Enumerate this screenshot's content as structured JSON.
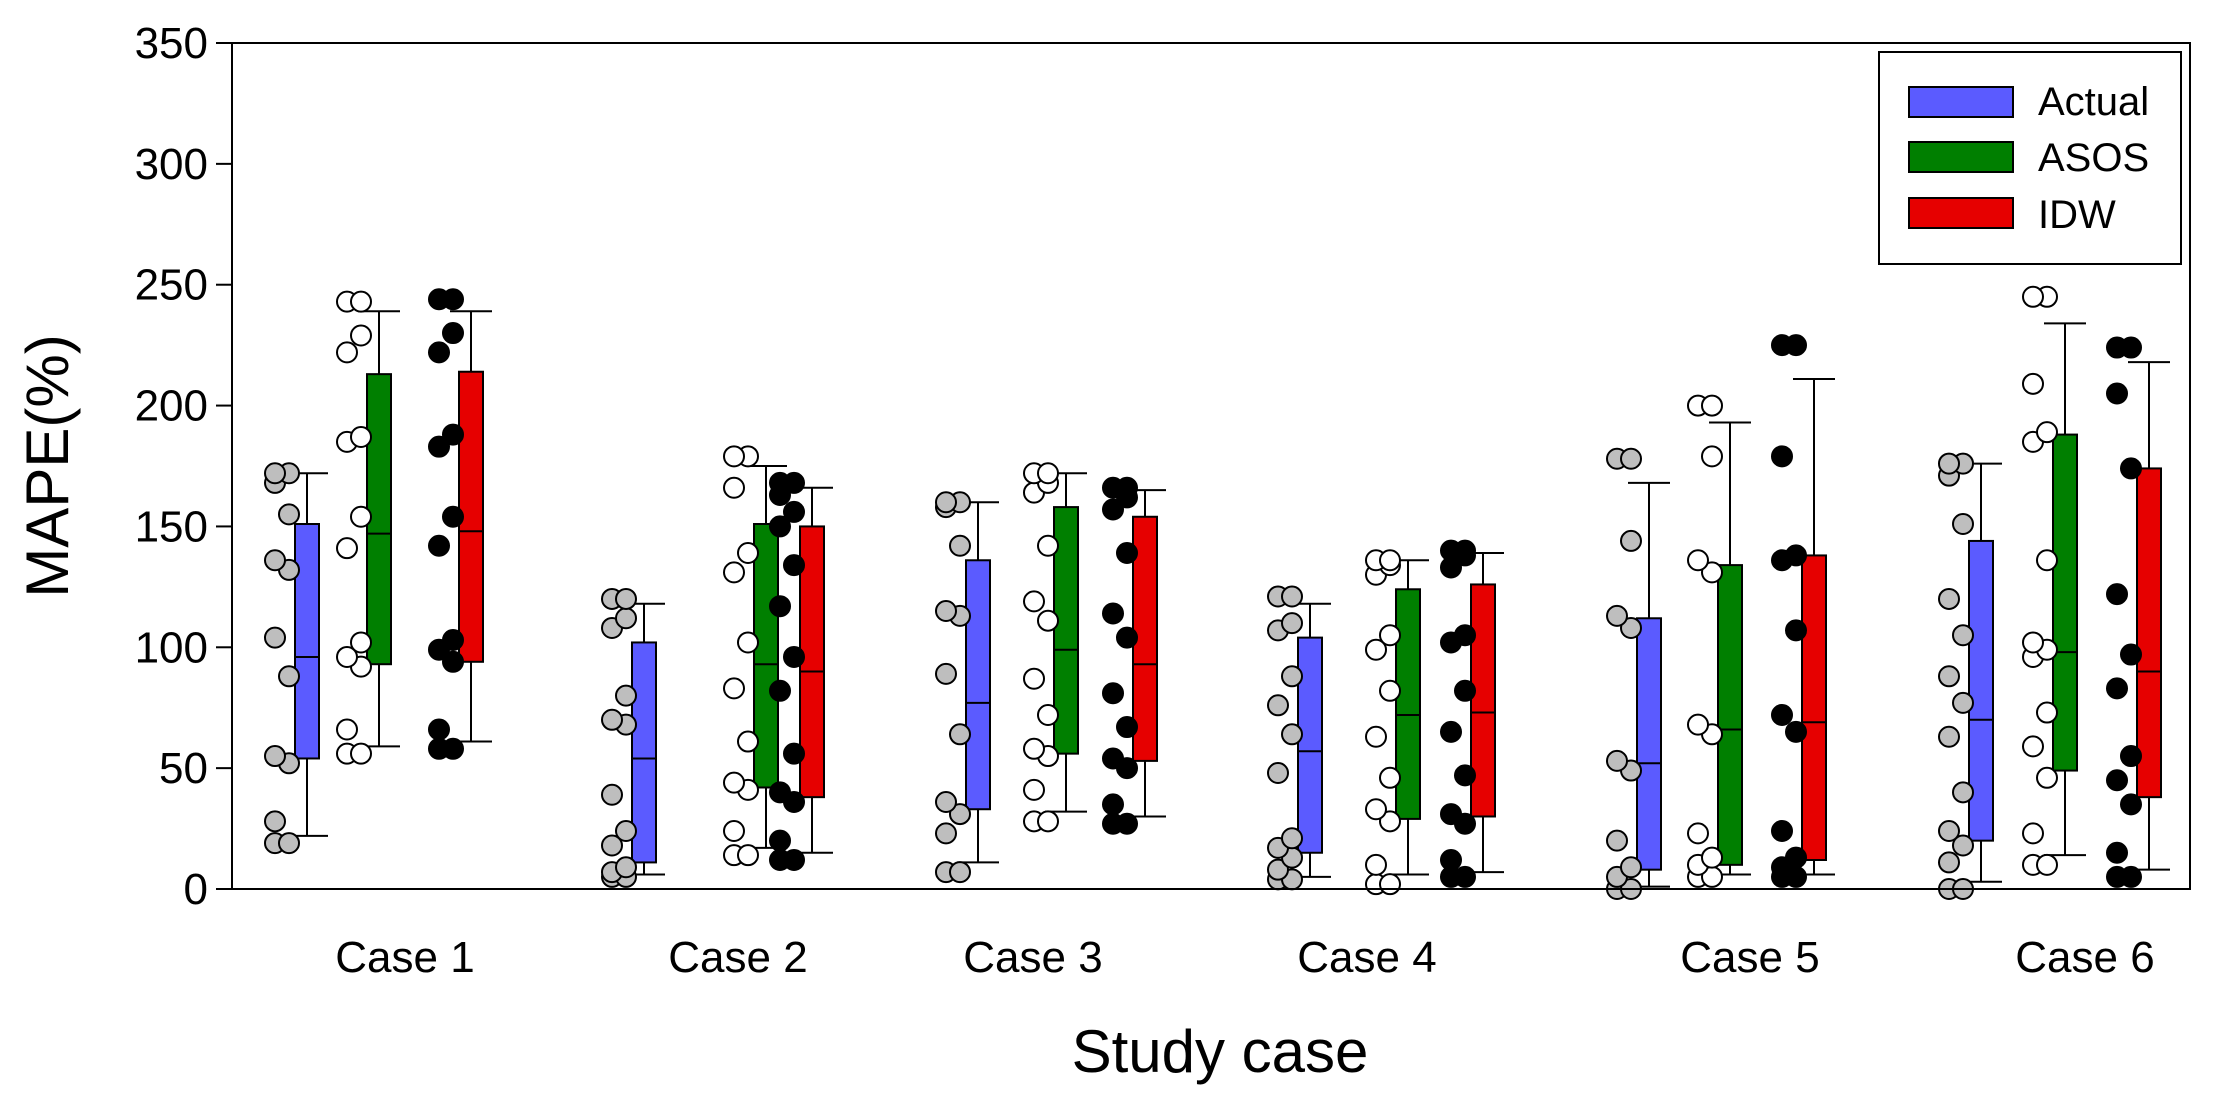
{
  "chart_data": {
    "type": "boxplot",
    "title": "",
    "xlabel": "Study case",
    "ylabel": "MAPE(%)",
    "ylim": [
      0,
      350
    ],
    "yticks": [
      0,
      50,
      100,
      150,
      200,
      250,
      300,
      350
    ],
    "ytick_labels": [
      "0",
      "50",
      "100",
      "150",
      "200",
      "250",
      "300",
      "350"
    ],
    "legend_position": "top-right",
    "categories": [
      "Case 1",
      "Case 2",
      "Case 3",
      "Case 4",
      "Case 5",
      "Case 6"
    ],
    "series": [
      {
        "name": "Actual",
        "color": "#5B5BFF",
        "point_fill": "#BEBEBE",
        "boxes": [
          {
            "min": 22,
            "q1": 54,
            "median": 96,
            "q3": 151,
            "max": 172,
            "points": [
              19,
              19,
              28,
              52,
              55,
              88,
              104,
              132,
              136,
              155,
              168,
              172,
              172
            ]
          },
          {
            "min": 6,
            "q1": 11,
            "median": 54,
            "q3": 102,
            "max": 118,
            "points": [
              5,
              5,
              7,
              9,
              18,
              24,
              39,
              68,
              70,
              80,
              108,
              112,
              120,
              120
            ]
          },
          {
            "min": 11,
            "q1": 33,
            "median": 77,
            "q3": 136,
            "max": 160,
            "points": [
              7,
              7,
              23,
              31,
              36,
              64,
              89,
              113,
              115,
              142,
              158,
              160,
              160
            ]
          },
          {
            "min": 5,
            "q1": 15,
            "median": 57,
            "q3": 104,
            "max": 118,
            "points": [
              4,
              4,
              8,
              13,
              17,
              21,
              48,
              64,
              76,
              88,
              107,
              110,
              121,
              121
            ]
          },
          {
            "min": 1,
            "q1": 8,
            "median": 52,
            "q3": 112,
            "max": 168,
            "points": [
              0,
              0,
              5,
              9,
              20,
              49,
              53,
              108,
              113,
              144,
              178,
              178
            ]
          },
          {
            "min": 3,
            "q1": 20,
            "median": 70,
            "q3": 144,
            "max": 176,
            "points": [
              0,
              0,
              11,
              18,
              24,
              40,
              63,
              77,
              88,
              105,
              120,
              151,
              171,
              176,
              176
            ]
          }
        ]
      },
      {
        "name": "ASOS",
        "color": "#007F00",
        "point_fill": "#FFFFFF",
        "boxes": [
          {
            "min": 59,
            "q1": 93,
            "median": 147,
            "q3": 213,
            "max": 239,
            "points": [
              56,
              56,
              66,
              92,
              96,
              102,
              141,
              154,
              185,
              187,
              222,
              229,
              243,
              243
            ]
          },
          {
            "min": 17,
            "q1": 42,
            "median": 93,
            "q3": 151,
            "max": 175,
            "points": [
              14,
              14,
              24,
              41,
              44,
              61,
              83,
              102,
              131,
              139,
              166,
              179,
              179
            ]
          },
          {
            "min": 32,
            "q1": 56,
            "median": 99,
            "q3": 158,
            "max": 172,
            "points": [
              28,
              28,
              41,
              55,
              58,
              72,
              87,
              111,
              119,
              142,
              164,
              168,
              172,
              172
            ]
          },
          {
            "min": 6,
            "q1": 29,
            "median": 72,
            "q3": 124,
            "max": 136,
            "points": [
              2,
              2,
              10,
              28,
              33,
              46,
              63,
              82,
              99,
              105,
              130,
              134,
              136,
              136
            ]
          },
          {
            "min": 6,
            "q1": 10,
            "median": 66,
            "q3": 134,
            "max": 193,
            "points": [
              5,
              5,
              10,
              13,
              23,
              64,
              68,
              131,
              136,
              179,
              200,
              200
            ]
          },
          {
            "min": 14,
            "q1": 49,
            "median": 98,
            "q3": 188,
            "max": 234,
            "points": [
              10,
              10,
              23,
              46,
              59,
              73,
              96,
              99,
              102,
              136,
              185,
              189,
              209,
              245,
              245
            ]
          }
        ]
      },
      {
        "name": "IDW",
        "color": "#E60000",
        "point_fill": "#000000",
        "boxes": [
          {
            "min": 61,
            "q1": 94,
            "median": 148,
            "q3": 214,
            "max": 239,
            "points": [
              58,
              58,
              66,
              94,
              99,
              103,
              142,
              154,
              183,
              188,
              222,
              230,
              244,
              244
            ]
          },
          {
            "min": 15,
            "q1": 38,
            "median": 90,
            "q3": 150,
            "max": 166,
            "points": [
              12,
              12,
              20,
              36,
              40,
              56,
              82,
              96,
              117,
              134,
              150,
              156,
              163,
              168,
              168
            ]
          },
          {
            "min": 30,
            "q1": 53,
            "median": 93,
            "q3": 154,
            "max": 165,
            "points": [
              27,
              27,
              35,
              50,
              54,
              67,
              81,
              104,
              114,
              139,
              157,
              162,
              166,
              166
            ]
          },
          {
            "min": 7,
            "q1": 30,
            "median": 73,
            "q3": 126,
            "max": 139,
            "points": [
              5,
              5,
              12,
              27,
              31,
              47,
              65,
              82,
              102,
              105,
              133,
              138,
              140,
              140
            ]
          },
          {
            "min": 6,
            "q1": 12,
            "median": 69,
            "q3": 138,
            "max": 211,
            "points": [
              5,
              5,
              9,
              13,
              24,
              65,
              72,
              107,
              136,
              138,
              179,
              225,
              225
            ]
          },
          {
            "min": 8,
            "q1": 38,
            "median": 90,
            "q3": 174,
            "max": 218,
            "points": [
              5,
              5,
              15,
              35,
              45,
              55,
              83,
              97,
              122,
              174,
              205,
              224,
              224
            ]
          }
        ]
      }
    ]
  }
}
